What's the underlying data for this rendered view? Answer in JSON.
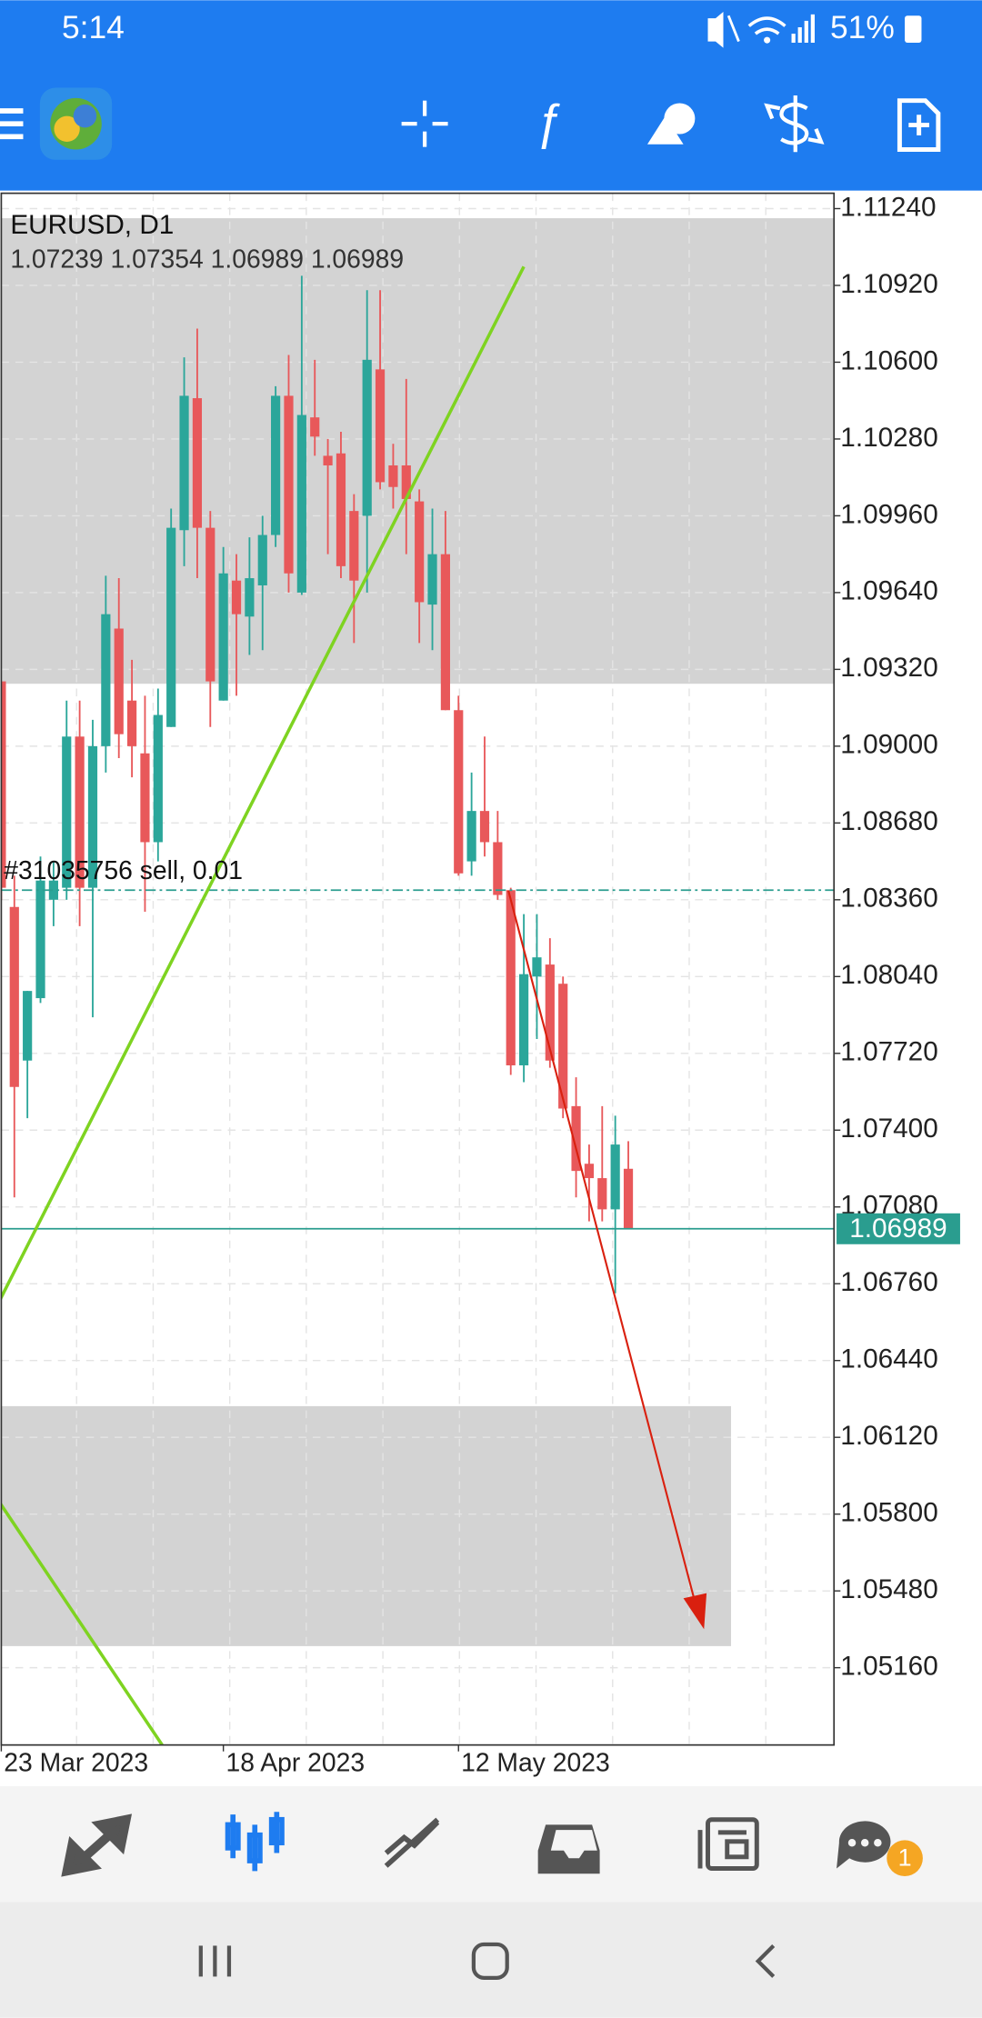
{
  "status_bar": {
    "time": "5:14",
    "battery": "51%"
  },
  "chart_data": {
    "type": "candlestick",
    "title": "EURUSD, D1",
    "categories": [
      "23 Mar 2023",
      null,
      null,
      null,
      null,
      null,
      null,
      null,
      null,
      null,
      null,
      null,
      null,
      null,
      null,
      null,
      null,
      "18 Apr 2023",
      null,
      null,
      null,
      null,
      null,
      null,
      null,
      null,
      null,
      null,
      null,
      null,
      null,
      null,
      null,
      null,
      null,
      "12 May 2023",
      null,
      null,
      null,
      null,
      null,
      null,
      null,
      null,
      null,
      null,
      null,
      null,
      null
    ],
    "open": [
      1.0927,
      1.0833,
      1.0769,
      1.0795,
      1.0836,
      1.0841,
      1.0904,
      1.0841,
      1.09,
      1.0949,
      1.0919,
      1.0897,
      1.086,
      1.0908,
      1.099,
      1.1045,
      1.0991,
      1.0919,
      1.0969,
      1.0954,
      1.0967,
      1.0988,
      1.1046,
      1.0964,
      1.1037,
      1.1021,
      1.1022,
      1.0998,
      1.0996,
      1.1057,
      1.1017,
      1.1017,
      1.1002,
      1.0959,
      1.098,
      1.0915,
      1.0852,
      1.0873,
      1.086,
      1.084,
      1.0767,
      1.0804,
      1.0809,
      1.0801,
      1.075,
      1.0726,
      1.072,
      1.0707,
      1.07239
    ],
    "high": [
      1.0927,
      1.0846,
      1.0798,
      1.0854,
      1.0852,
      1.0919,
      1.0919,
      1.0911,
      1.0971,
      1.097,
      1.0936,
      1.0921,
      1.0924,
      1.0999,
      1.1062,
      1.1074,
      1.0998,
      1.0983,
      1.098,
      1.0987,
      1.0996,
      1.105,
      1.1063,
      1.1096,
      1.1061,
      1.1028,
      1.1031,
      1.1005,
      1.109,
      1.109,
      1.1026,
      1.1053,
      1.1007,
      1.0999,
      1.0998,
      1.0921,
      1.0889,
      1.0904,
      1.0873,
      1.0841,
      1.083,
      1.083,
      1.082,
      1.0804,
      1.0762,
      1.0734,
      1.075,
      1.0746,
      1.07354
    ],
    "low": [
      1.0836,
      1.0712,
      1.0745,
      1.0793,
      1.0825,
      1.0836,
      1.0825,
      1.0787,
      1.0889,
      1.0895,
      1.0887,
      1.0831,
      1.0852,
      1.0908,
      1.0975,
      1.097,
      1.0908,
      1.0919,
      1.0921,
      1.0938,
      1.094,
      1.0983,
      1.0964,
      1.0963,
      1.1021,
      1.098,
      1.097,
      1.0943,
      1.0964,
      1.1007,
      1.0999,
      1.098,
      1.0943,
      1.094,
      1.0915,
      1.0846,
      1.0846,
      1.0854,
      1.0836,
      1.0763,
      1.076,
      1.0778,
      1.0766,
      1.0745,
      1.0712,
      1.0702,
      1.0702,
      1.0672,
      1.06989
    ],
    "close": [
      1.0841,
      1.0758,
      1.0798,
      1.0844,
      1.0844,
      1.0904,
      1.0841,
      1.09,
      1.0955,
      1.0905,
      1.09,
      1.086,
      1.0913,
      1.0991,
      1.1046,
      1.0991,
      1.0927,
      1.0972,
      1.0955,
      1.097,
      1.0988,
      1.1046,
      1.0972,
      1.1038,
      1.1029,
      1.1017,
      1.0975,
      1.0969,
      1.1061,
      1.101,
      1.1008,
      1.1003,
      1.096,
      1.098,
      1.0915,
      1.0847,
      1.0873,
      1.086,
      1.0838,
      1.0767,
      1.0805,
      1.0812,
      1.0769,
      1.0749,
      1.0723,
      1.072,
      1.0707,
      1.0734,
      1.06989
    ],
    "up_color": "#2ba69a",
    "down_color": "#e8585a",
    "ylim": [
      1.04838,
      1.11304
    ],
    "yticks": [
      {
        "value": 1.1124,
        "label": "1.11240"
      },
      {
        "value": 1.1092,
        "label": "1.10920"
      },
      {
        "value": 1.106,
        "label": "1.10600"
      },
      {
        "value": 1.1028,
        "label": "1.10280"
      },
      {
        "value": 1.0996,
        "label": "1.09960"
      },
      {
        "value": 1.0964,
        "label": "1.09640"
      },
      {
        "value": 1.0932,
        "label": "1.09320"
      },
      {
        "value": 1.09,
        "label": "1.09000"
      },
      {
        "value": 1.0868,
        "label": "1.08680"
      },
      {
        "value": 1.0836,
        "label": "1.08360"
      },
      {
        "value": 1.0804,
        "label": "1.08040"
      },
      {
        "value": 1.0772,
        "label": "1.07720"
      },
      {
        "value": 1.074,
        "label": "1.07400"
      },
      {
        "value": 1.0708,
        "label": "1.07080"
      },
      {
        "value": 1.0676,
        "label": "1.06760"
      },
      {
        "value": 1.0644,
        "label": "1.06440"
      },
      {
        "value": 1.0612,
        "label": "1.06120"
      },
      {
        "value": 1.058,
        "label": "1.05800"
      },
      {
        "value": 1.0548,
        "label": "1.05480"
      },
      {
        "value": 1.0516,
        "label": "1.05160"
      }
    ],
    "grid": true,
    "zones": [
      {
        "low": 1.0926,
        "high": 1.112
      },
      {
        "low": 1.0525,
        "high": 1.0625
      }
    ],
    "order_line": {
      "label": "#31035756 sell, 0.01",
      "value": 1.084
    }
  },
  "tab_bar": {
    "badge": "1"
  }
}
